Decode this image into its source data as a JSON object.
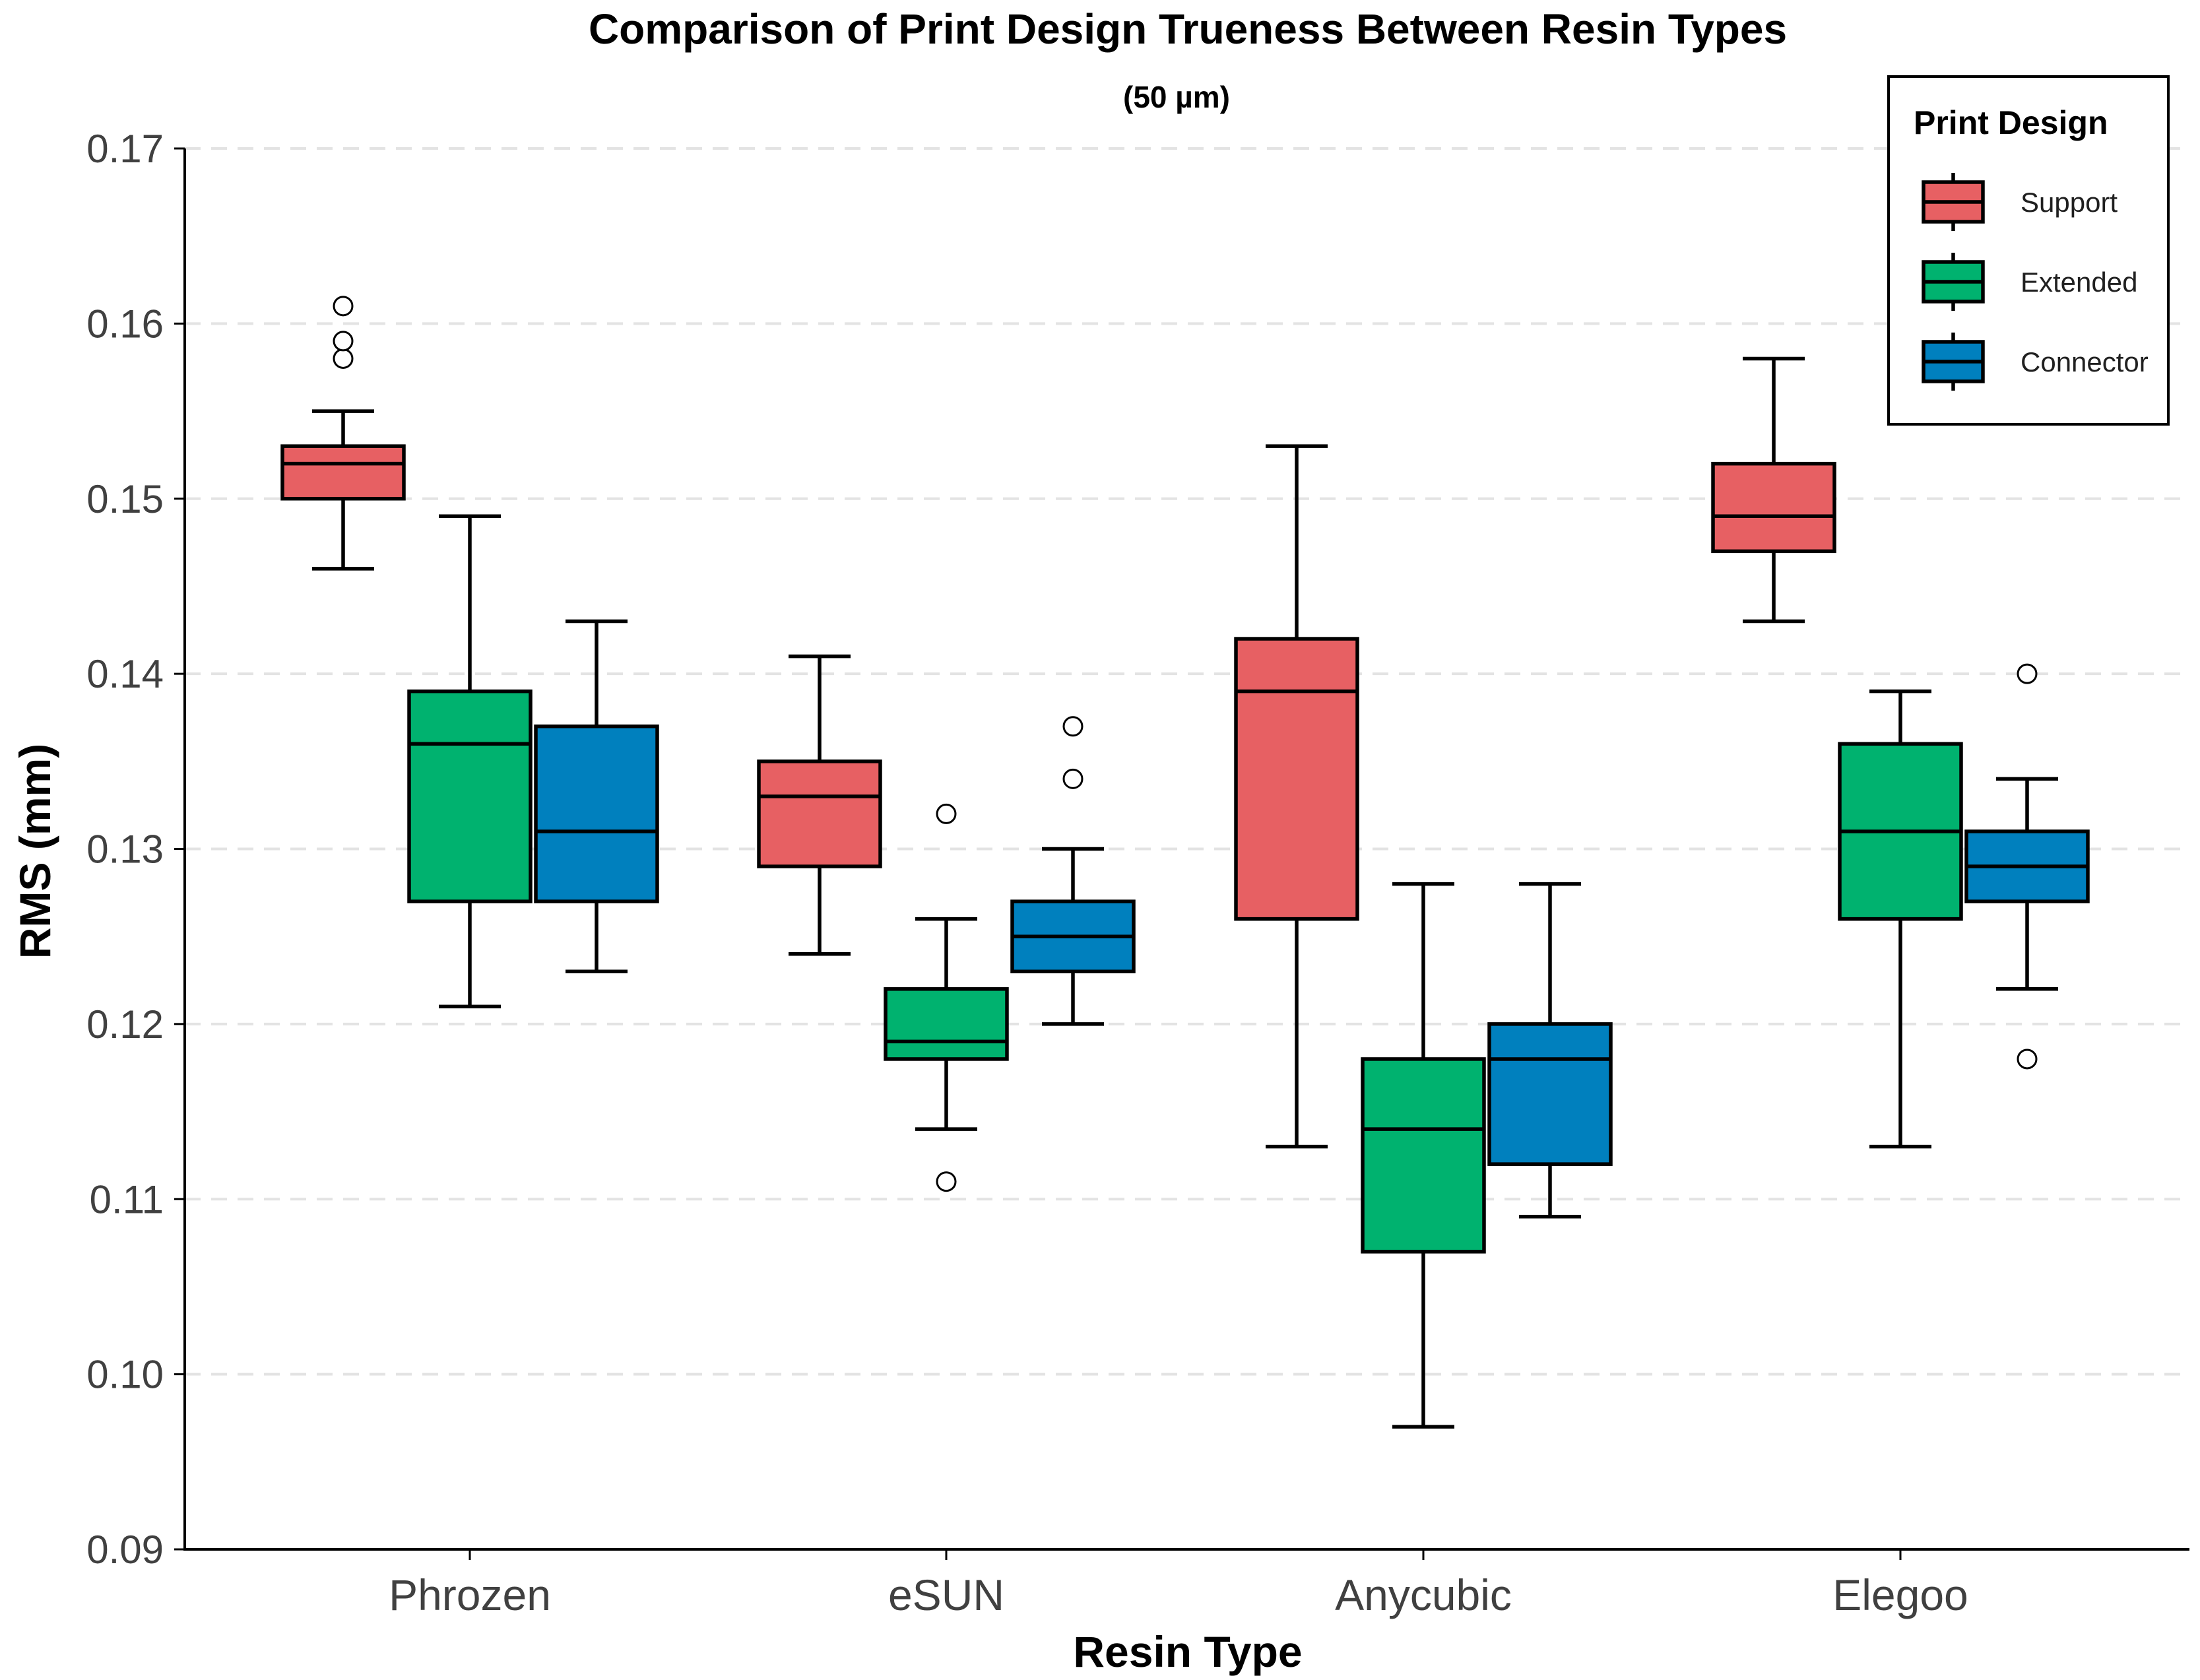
{
  "chart_data": {
    "type": "boxplot",
    "title": "Comparison of Print Design Trueness Between Resin Types",
    "subtitle": "(50 µm)",
    "xlabel": "Resin Type",
    "ylabel": "RMS (mm)",
    "ylim": [
      0.09,
      0.17
    ],
    "yticks": [
      "0.09",
      "0.10",
      "0.11",
      "0.12",
      "0.13",
      "0.14",
      "0.15",
      "0.16",
      "0.17"
    ],
    "grid": "horizontal dashed",
    "legend_position": "top-right",
    "legend_title": "Print Design",
    "categories": [
      "Phrozen",
      "eSUN",
      "Anycubic",
      "Elegoo"
    ],
    "series": [
      {
        "name": "Support",
        "color": "#E76063",
        "boxes": [
          {
            "min": 0.146,
            "q1": 0.15,
            "median": 0.152,
            "q3": 0.153,
            "max": 0.155,
            "outliers": [
              0.158,
              0.159,
              0.161
            ]
          },
          {
            "min": 0.124,
            "q1": 0.129,
            "median": 0.133,
            "q3": 0.135,
            "max": 0.141,
            "outliers": []
          },
          {
            "min": 0.113,
            "q1": 0.126,
            "median": 0.139,
            "q3": 0.142,
            "max": 0.153,
            "outliers": []
          },
          {
            "min": 0.143,
            "q1": 0.147,
            "median": 0.149,
            "q3": 0.152,
            "max": 0.158,
            "outliers": []
          }
        ]
      },
      {
        "name": "Extended",
        "color": "#00B26F",
        "boxes": [
          {
            "min": 0.121,
            "q1": 0.127,
            "median": 0.136,
            "q3": 0.139,
            "max": 0.149,
            "outliers": []
          },
          {
            "min": 0.114,
            "q1": 0.118,
            "median": 0.119,
            "q3": 0.122,
            "max": 0.126,
            "outliers": [
              0.111,
              0.132
            ]
          },
          {
            "min": 0.097,
            "q1": 0.107,
            "median": 0.114,
            "q3": 0.118,
            "max": 0.128,
            "outliers": []
          },
          {
            "min": 0.113,
            "q1": 0.126,
            "median": 0.131,
            "q3": 0.136,
            "max": 0.139,
            "outliers": []
          }
        ]
      },
      {
        "name": "Connector",
        "color": "#0080BE",
        "boxes": [
          {
            "min": 0.123,
            "q1": 0.127,
            "median": 0.131,
            "q3": 0.137,
            "max": 0.143,
            "outliers": []
          },
          {
            "min": 0.12,
            "q1": 0.123,
            "median": 0.125,
            "q3": 0.127,
            "max": 0.13,
            "outliers": [
              0.134,
              0.137
            ]
          },
          {
            "min": 0.109,
            "q1": 0.112,
            "median": 0.118,
            "q3": 0.12,
            "max": 0.128,
            "outliers": []
          },
          {
            "min": 0.122,
            "q1": 0.127,
            "median": 0.129,
            "q3": 0.131,
            "max": 0.134,
            "outliers": [
              0.118,
              0.14
            ]
          }
        ]
      }
    ]
  }
}
